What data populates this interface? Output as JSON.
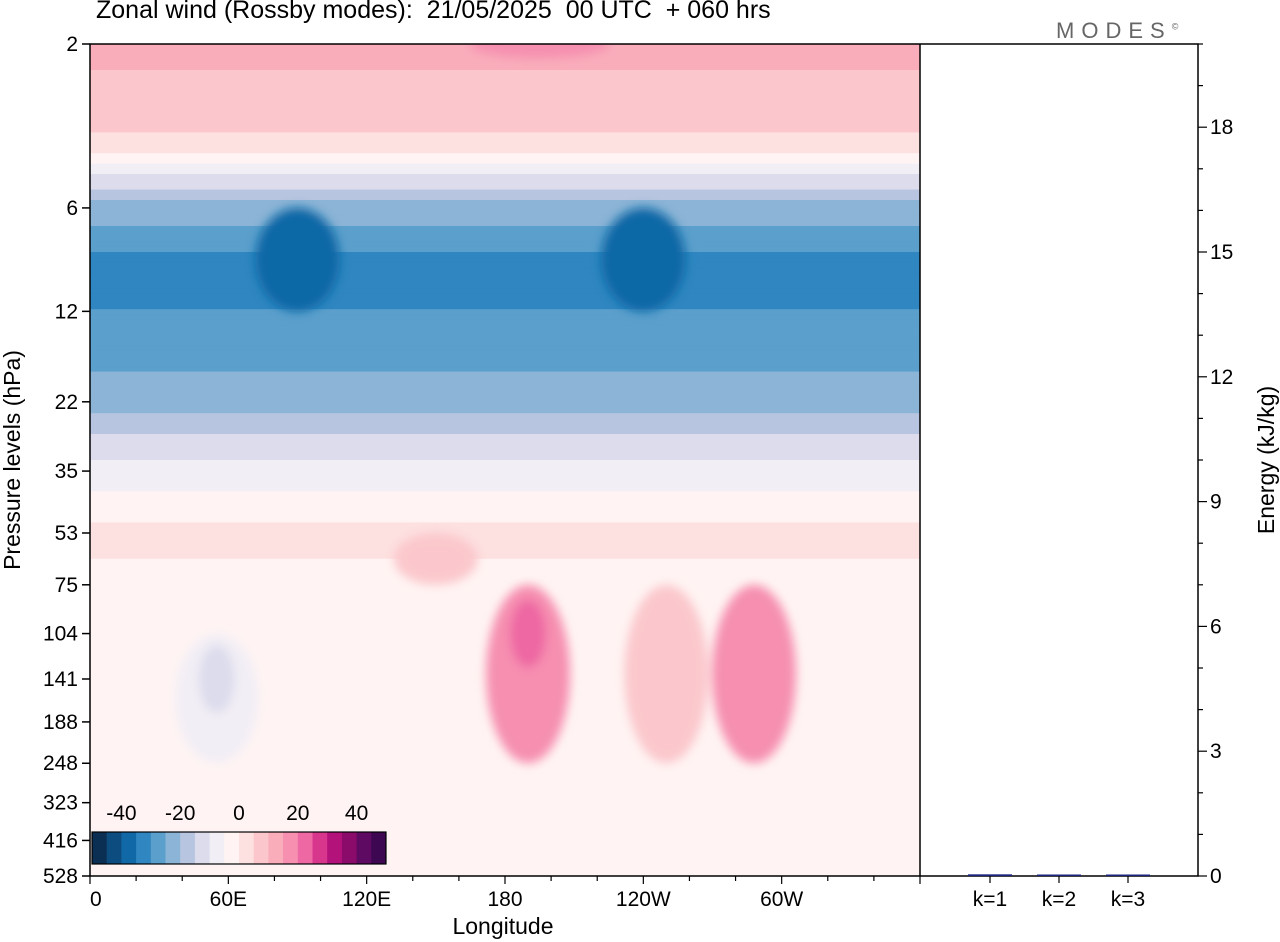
{
  "title": "Zonal wind (Rossby modes):  21/05/2025  00 UTC  + 060 hrs",
  "brand": {
    "name": "MODES",
    "mark": "©"
  },
  "chart_data": [
    {
      "type": "heatmap",
      "title": "Zonal wind (Rossby modes):  21/05/2025  00 UTC  + 060 hrs",
      "xlabel": "Longitude",
      "ylabel": "Pressure levels (hPa)",
      "x_ticks": [
        "0",
        "60E",
        "120E",
        "180",
        "120W",
        "60W"
      ],
      "y_levels": [
        "2",
        "6",
        "12",
        "22",
        "35",
        "53",
        "75",
        "104",
        "141",
        "188",
        "248",
        "323",
        "416",
        "528"
      ],
      "y_scale": "log-pressure (top = low pressure)",
      "colorbar": {
        "tick_labels": [
          "-40",
          "-20",
          "0",
          "20",
          "40"
        ],
        "range": [
          -50,
          50
        ],
        "step": 5,
        "colors": [
          "#0a2f52",
          "#0d4c7e",
          "#1168a6",
          "#2f86c0",
          "#5b9fcc",
          "#8bb4d6",
          "#b7c5e0",
          "#dcdcec",
          "#f2eef5",
          "#fff4f3",
          "#fde0e0",
          "#fbc7cc",
          "#f9adbb",
          "#f68fb0",
          "#ee68a3",
          "#d8368d",
          "#b3127a",
          "#8b0b6a",
          "#5e0a62",
          "#3d0752"
        ]
      },
      "field_bands": [
        {
          "level": "2",
          "value": 12
        },
        {
          "level": "4",
          "value": 4
        },
        {
          "level": "5",
          "value": -12
        },
        {
          "level": "6",
          "value": -22
        },
        {
          "level": "9",
          "value": -33
        },
        {
          "level": "12",
          "value": -30
        },
        {
          "level": "17",
          "value": -26
        },
        {
          "level": "22",
          "value": -22
        },
        {
          "level": "30",
          "value": -12
        },
        {
          "level": "35",
          "value": -8
        },
        {
          "level": "45",
          "value": -2
        },
        {
          "level": "53",
          "value": 2
        },
        {
          "level": "75",
          "value": -2
        },
        {
          "level": "528",
          "value": -2
        }
      ],
      "features": [
        {
          "lon": 190,
          "level_range": [
            "75",
            "248"
          ],
          "value": 17,
          "peak": 22,
          "peak_level": "104"
        },
        {
          "lon": 288,
          "level_range": [
            "75",
            "248"
          ],
          "value": 15
        },
        {
          "lon": 250,
          "level_range": [
            "75",
            "248"
          ],
          "value": 7
        },
        {
          "lon": 150,
          "level_range": [
            "53",
            "75"
          ],
          "value": 7
        },
        {
          "lon": 55,
          "level_range": [
            "104",
            "248"
          ],
          "value": -7,
          "peak": -12,
          "peak_level": "141"
        },
        {
          "lon": 240,
          "level_range": [
            "6",
            "12"
          ],
          "value": -40
        },
        {
          "lon": 90,
          "level_range": [
            "6",
            "12"
          ],
          "value": -37
        },
        {
          "lon": 195,
          "level_range": [
            "2",
            "2"
          ],
          "value": 18
        }
      ]
    },
    {
      "type": "bar",
      "ylabel": "Energy (kJ/kg)",
      "categories": [
        "k=1",
        "k=2",
        "k=3"
      ],
      "values": [
        0.04,
        0.03,
        0.02
      ],
      "ylim": [
        0,
        20
      ],
      "y_ticks": [
        0,
        3,
        6,
        9,
        12,
        15,
        18
      ],
      "bar_color": "#1a237e"
    }
  ]
}
